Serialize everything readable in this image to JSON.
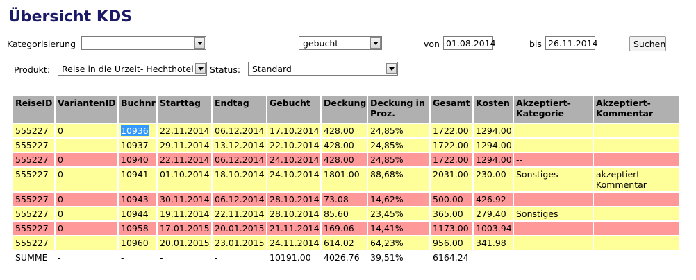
{
  "header": {
    "title": "Übersicht KDS"
  },
  "filters": {
    "kategorisierung_label": "Kategorisierung",
    "kategorisierung_value": "--",
    "buchung_value": "gebucht",
    "von_label": "von",
    "von_value": "01.08.2014",
    "bis_label": "bis",
    "bis_value": "26.11.2014",
    "search_button": "Suchen",
    "produkt_label": "Produkt:",
    "produkt_value": "Reise in die Urzeit- Hechthotel",
    "status_label": "Status:",
    "status_value": "Standard"
  },
  "table": {
    "columns": [
      "ReiseID",
      "VariantenID",
      "Buchnr",
      "Starttag",
      "Endtag",
      "Gebucht",
      "Deckung",
      "Deckung in Proz.",
      "Gesamt",
      "Kosten",
      "Akzeptiert-Kategorie",
      "Akzeptiert-Kommentar"
    ],
    "rows": [
      {
        "color": "#ffff99",
        "cells": [
          "555227",
          "0",
          "10936",
          "22.11.2014",
          "06.12.2014",
          "17.10.2014",
          "428.00",
          "24,85%",
          "1722.00",
          "1294.00",
          null,
          null
        ]
      },
      {
        "color": "#ffff99",
        "cells": [
          "555227",
          null,
          "10937",
          "29.11.2014",
          "13.12.2014",
          "22.10.2014",
          "428.00",
          "24,85%",
          "1722.00",
          "1294.00",
          null,
          null
        ]
      },
      {
        "color": "#ff9999",
        "cells": [
          "555227",
          "0",
          "10940",
          "22.11.2014",
          "06.12.2014",
          "24.10.2014",
          "428.00",
          "24,85%",
          "1722.00",
          "1294.00",
          "--",
          null
        ]
      },
      {
        "color": "#ffff99",
        "cells": [
          "555227",
          "0",
          "10941",
          "01.10.2014",
          "18.10.2014",
          "24.10.2014",
          "1801.00",
          "88,68%",
          "2031.00",
          "230.00",
          "Sonstiges",
          "akzeptiert Kommentar"
        ]
      },
      {
        "color": "#ff9999",
        "cells": [
          "555227",
          "0",
          "10943",
          "30.11.2014",
          "06.12.2014",
          "28.10.2014",
          "73.08",
          "14,62%",
          "500.00",
          "426.92",
          "--",
          null
        ]
      },
      {
        "color": "#ffff99",
        "cells": [
          "555227",
          "0",
          "10944",
          "19.11.2014",
          "22.11.2014",
          "28.10.2014",
          "85.60",
          "23,45%",
          "365.00",
          "279.40",
          "Sonstiges",
          null
        ]
      },
      {
        "color": "#ff9999",
        "cells": [
          "555227",
          "0",
          "10958",
          "17.01.2015",
          "20.01.2015",
          "21.11.2014",
          "169.06",
          "14,41%",
          "1173.00",
          "1003.94",
          "--",
          null
        ]
      },
      {
        "color": "#ffff99",
        "cells": [
          "555227",
          null,
          "10960",
          "20.01.2015",
          "23.01.2015",
          "24.11.2014",
          "614.02",
          "64,23%",
          "956.00",
          "341.98",
          null,
          null
        ]
      }
    ],
    "total": [
      "SUMME",
      "-",
      "-",
      "-",
      "-",
      "10191.00",
      "4026.76",
      "39,51%",
      "6164.24",
      null,
      null,
      null
    ]
  }
}
